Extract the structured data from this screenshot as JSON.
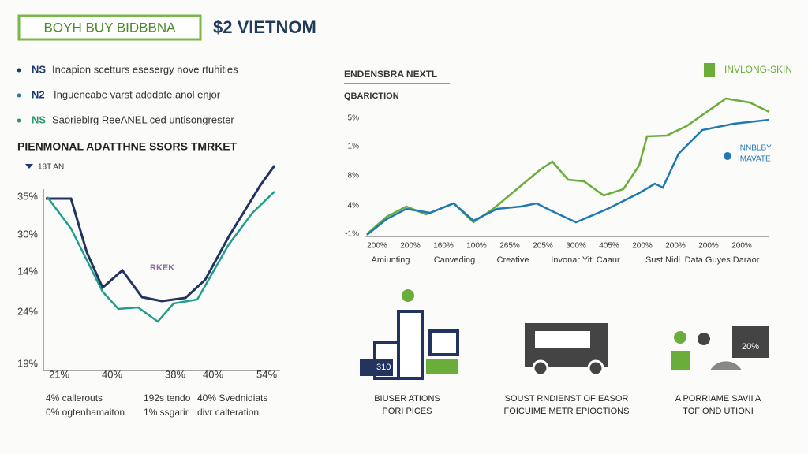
{
  "header": {
    "badge": "BOYH BUY BIDBBNA",
    "title": "$2 VIETNOM"
  },
  "bullets": [
    {
      "key": "NS",
      "text": "Incapion scetturs esesergy nove rtuhities"
    },
    {
      "key": "N2",
      "text": "Inguencabe varst adddate anol enjor"
    },
    {
      "key": "NS",
      "text": "Saorieblrg ReeANEL ced untisongrester"
    }
  ],
  "left_panel": {
    "title": "PIENMONAL ADATTHNE SSORS TMRKET",
    "legend": "18T AN",
    "y_labels": [
      "35%",
      "30%",
      "14%",
      "24%",
      "19%"
    ],
    "x_labels": [
      "21%",
      "40%",
      "38%",
      "40%",
      "54%"
    ],
    "notes": [
      [
        "4% callerouts",
        "192s tendo",
        "40% Svednidiats"
      ],
      [
        "0% ogtenhamaiton",
        "1% ssgarir",
        "divr calteration"
      ]
    ],
    "watermark": "RKEK"
  },
  "right_panel": {
    "title": "ENDENSBRA NEXTL",
    "subtitle": "QBARICTION",
    "y_labels": [
      "5%",
      "1%",
      "8%",
      "4%",
      "-1%"
    ],
    "x_labels": [
      "200%",
      "200%",
      "160%",
      "100%",
      "265%",
      "205%",
      "300%",
      "405%",
      "200%",
      "200%",
      "200%",
      "200%"
    ],
    "categories": [
      "Amiunting",
      "Canveding",
      "Creative",
      "Invonar Yiti Caaur",
      "Sust Nidl",
      "Data Guyes Daraor"
    ],
    "legend_green": "INVLONG-SKIN",
    "legend_blue": [
      "INNBLBY",
      "IMAVATE"
    ]
  },
  "features": [
    {
      "lines": [
        "BIUSER ATIONS",
        "PORI PICES"
      ],
      "icon_text": "310"
    },
    {
      "lines": [
        "SOUST RNDIENST OF EASOR",
        "FOICUIME METR EPIOCTIONS"
      ]
    },
    {
      "lines": [
        "A PORRIAME SAVII A",
        "TOFIOND UTIONI"
      ],
      "icon_text": "20%"
    }
  ]
}
